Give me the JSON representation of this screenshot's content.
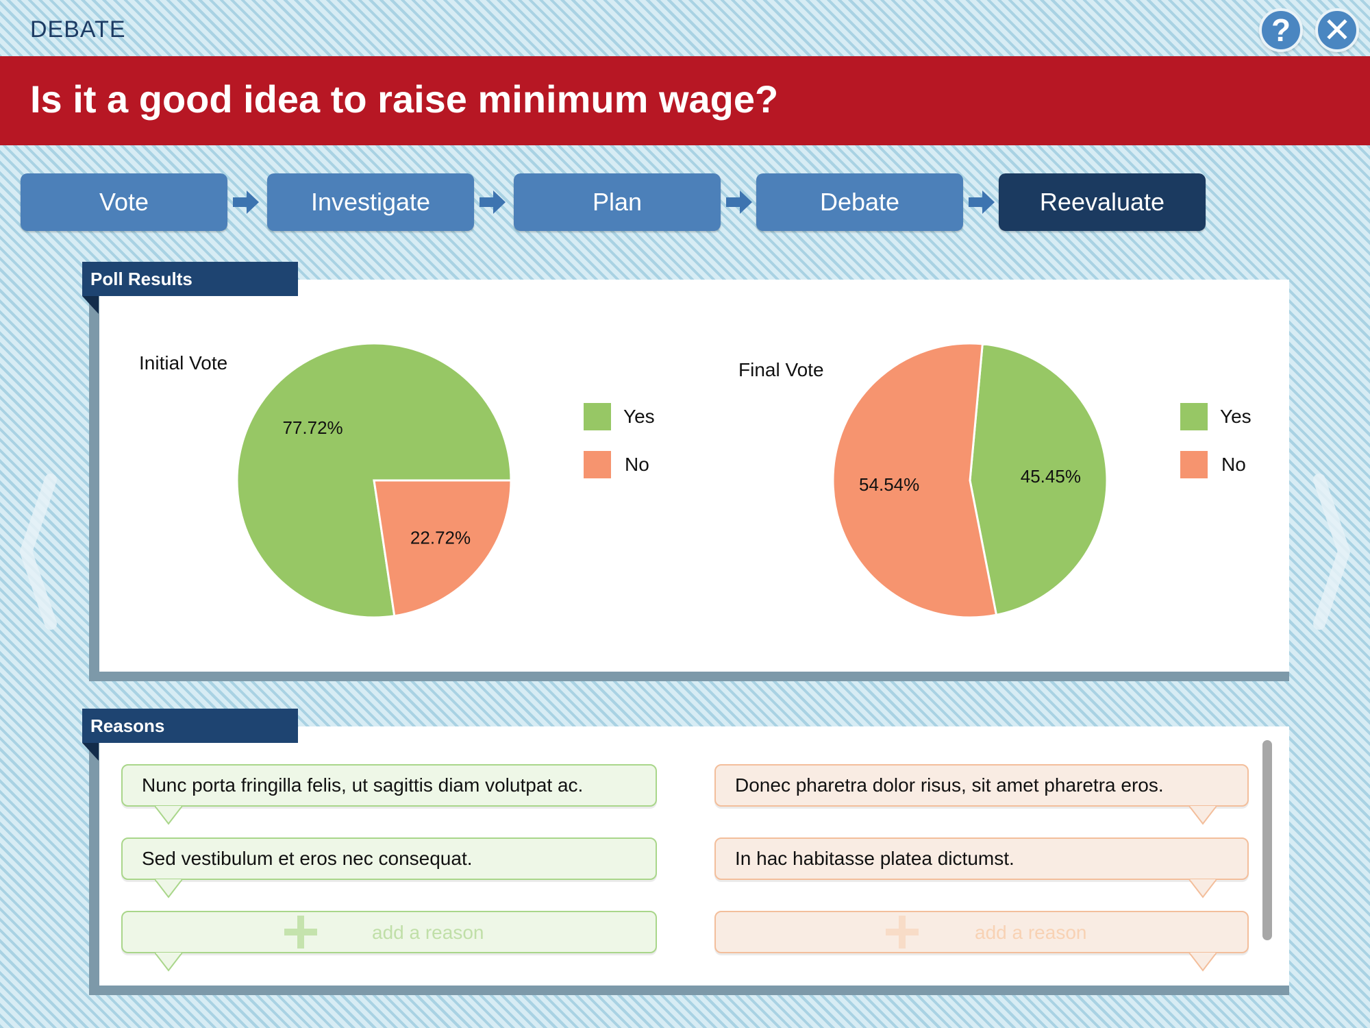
{
  "app": {
    "title": "DEBATE",
    "help_icon": "?",
    "close_icon": "✕"
  },
  "question": "Is it a good idea to raise minimum wage?",
  "steps": [
    {
      "label": "Vote",
      "active": false
    },
    {
      "label": "Investigate",
      "active": false
    },
    {
      "label": "Plan",
      "active": false
    },
    {
      "label": "Debate",
      "active": false
    },
    {
      "label": "Reevaluate",
      "active": true
    }
  ],
  "poll": {
    "tab_label": "Poll Results",
    "legend": {
      "yes": "Yes",
      "no": "No"
    }
  },
  "colors": {
    "yes": "#97c765",
    "no": "#f6946f",
    "header": "#b71724",
    "step": "#4c80b9",
    "step_active": "#1b3a60"
  },
  "chart_data": [
    {
      "type": "pie",
      "title": "Initial Vote",
      "categories": [
        "Yes",
        "No"
      ],
      "values": [
        77.72,
        22.72
      ],
      "labels": [
        "77.72%",
        "22.72%"
      ],
      "legend_position": "right"
    },
    {
      "type": "pie",
      "title": "Final Vote",
      "categories": [
        "Yes",
        "No"
      ],
      "values": [
        45.45,
        54.54
      ],
      "labels": [
        "45.45%",
        "54.54%"
      ],
      "legend_position": "right"
    }
  ],
  "reasons": {
    "tab_label": "Reasons",
    "yes": [
      "Nunc porta fringilla felis, ut sagittis diam volutpat ac.",
      "Sed vestibulum et eros nec consequat."
    ],
    "no": [
      "Donec pharetra dolor risus, sit amet pharetra eros.",
      "In hac habitasse platea dictumst."
    ],
    "add_placeholder": "add a reason"
  },
  "icons": {
    "help": "help-icon",
    "close": "close-icon",
    "prev": "chevron-left-icon",
    "next": "chevron-right-icon",
    "step_arrow": "arrow-right-icon",
    "add": "plus-icon"
  }
}
